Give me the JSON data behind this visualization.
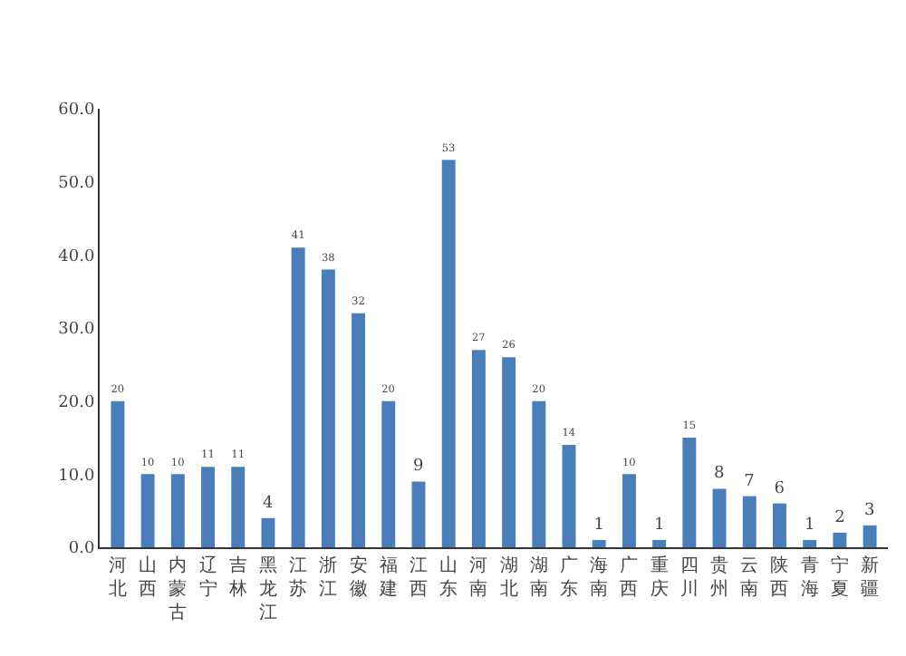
{
  "chart_data": {
    "type": "bar",
    "categories": [
      "河北",
      "山西",
      "内蒙古",
      "辽宁",
      "吉林",
      "黑龙江",
      "江苏",
      "浙江",
      "安徽",
      "福建",
      "江西",
      "山东",
      "河南",
      "湖北",
      "湖南",
      "广东",
      "海南",
      "广西",
      "重庆",
      "四川",
      "贵州",
      "云南",
      "陕西",
      "青海",
      "宁夏",
      "新疆"
    ],
    "values": [
      20,
      10,
      10,
      11,
      11,
      4,
      41,
      38,
      32,
      20,
      9,
      53,
      27,
      26,
      20,
      14,
      1,
      10,
      1,
      15,
      8,
      7,
      6,
      1,
      2,
      3
    ],
    "color": "#4a7ebb",
    "ylim": [
      0,
      60
    ],
    "yticks": [
      {
        "value": 0,
        "label": "0.0"
      },
      {
        "value": 10,
        "label": "10.0"
      },
      {
        "value": 20,
        "label": "20.0"
      },
      {
        "value": 30,
        "label": "30.0"
      },
      {
        "value": 40,
        "label": "40.0"
      },
      {
        "value": 50,
        "label": "50.0"
      },
      {
        "value": 60,
        "label": "60.0"
      }
    ],
    "grid": false,
    "data_labels": true
  }
}
